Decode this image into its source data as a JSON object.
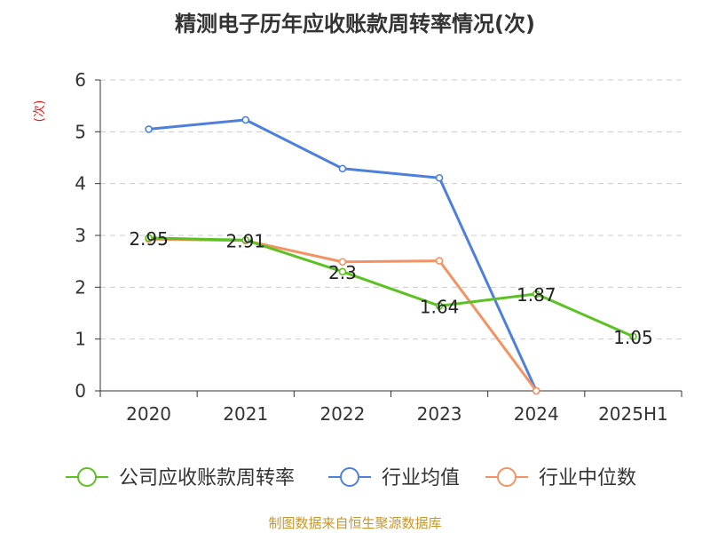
{
  "chart_data": {
    "type": "line",
    "title": "精测电子历年应收账款周转率情况(次)",
    "ylabel": "(次)",
    "xlabel": "",
    "categories": [
      "2020",
      "2021",
      "2022",
      "2023",
      "2024",
      "2025H1"
    ],
    "y_ticks": [
      "0",
      "1",
      "2",
      "3",
      "4",
      "5",
      "6"
    ],
    "ylim": [
      0,
      6
    ],
    "grid": true,
    "legend_position": "bottom",
    "series": [
      {
        "name": "公司应收账款周转率",
        "color": "#5cc122",
        "values": [
          2.95,
          2.91,
          2.3,
          1.64,
          1.87,
          1.05
        ],
        "labels": [
          "2.95",
          "2.91",
          "2.3",
          "1.64",
          "1.87",
          "1.05"
        ]
      },
      {
        "name": "行业均值",
        "color": "#4e7fdb",
        "values": [
          5.05,
          5.23,
          4.29,
          4.11,
          0,
          null
        ]
      },
      {
        "name": "行业中位数",
        "color": "#f39262",
        "values": [
          2.93,
          2.9,
          2.49,
          2.51,
          0,
          null
        ]
      }
    ]
  },
  "source": "制图数据来自恒生聚源数据库",
  "colors": {
    "unit_label": "#e02020",
    "source_text": "#c8962e",
    "axis": "#333333",
    "grid": "#cccccc"
  }
}
